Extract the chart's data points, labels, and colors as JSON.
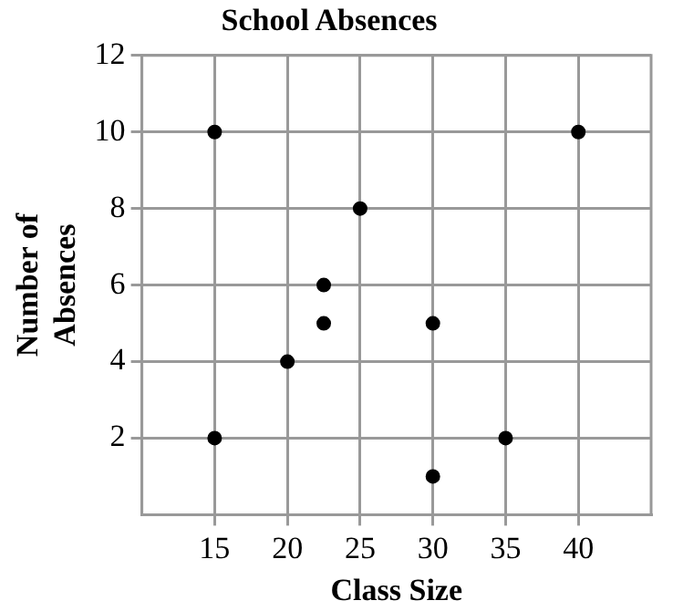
{
  "chart_data": {
    "type": "scatter",
    "title": "School Absences",
    "xlabel": "Class Size",
    "ylabel": "Number of Absences",
    "x": [
      15,
      15,
      20,
      22.5,
      22.5,
      25,
      30,
      30,
      35,
      40
    ],
    "values": [
      10,
      2,
      4,
      6,
      5,
      8,
      5,
      1,
      2,
      10
    ],
    "color": "#000000",
    "marker": "circle",
    "xlim": [
      10,
      45
    ],
    "xticks": [
      15,
      20,
      25,
      30,
      35,
      40
    ],
    "ylim": [
      0,
      12
    ],
    "yticks": [
      2,
      4,
      6,
      8,
      10,
      12
    ],
    "grid": true,
    "legend": false
  }
}
